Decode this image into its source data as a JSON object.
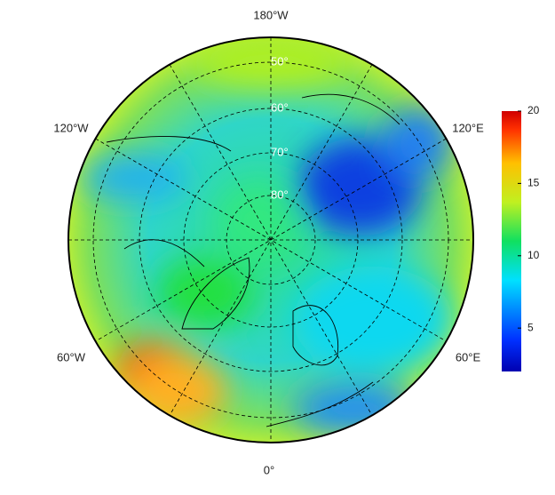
{
  "map": {
    "longitude_labels": [
      "180°W",
      "120°W",
      "120°E",
      "60°W",
      "60°E",
      "0°"
    ],
    "latitude_labels": [
      "50°",
      "60°",
      "70°",
      "80°"
    ],
    "colorbar": {
      "lim": [
        2,
        20
      ],
      "ticks": [
        5,
        10,
        15,
        20
      ],
      "colormap": "jet"
    }
  }
}
